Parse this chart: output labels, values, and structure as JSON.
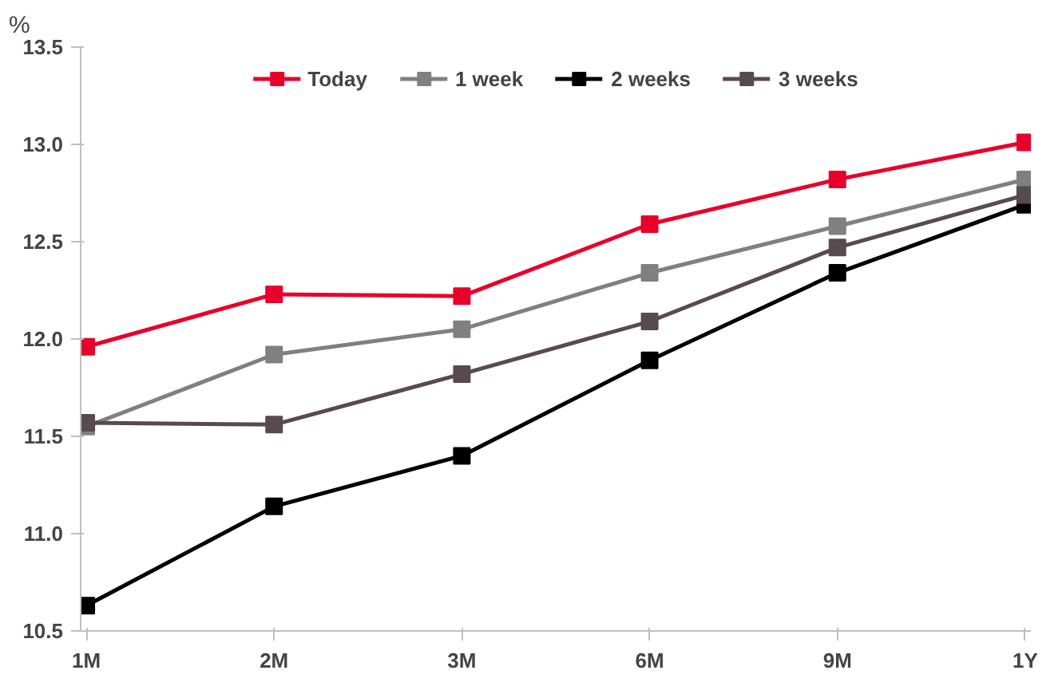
{
  "chart_data": {
    "type": "line",
    "ylabel": "%",
    "categories": [
      "1M",
      "2M",
      "3M",
      "6M",
      "9M",
      "1Y"
    ],
    "ylim": [
      10.5,
      13.5
    ],
    "yticks": [
      10.5,
      {
        "value": 11,
        "label": "11.0"
      },
      11.5,
      {
        "value": 12,
        "label": "12.0"
      },
      12.5,
      {
        "value": 13,
        "label": "13.0"
      },
      13.5
    ],
    "series": [
      {
        "name": "Today",
        "color": "#e8002a",
        "values": [
          11.96,
          12.23,
          12.22,
          12.59,
          12.82,
          13.01
        ]
      },
      {
        "name": "1 week",
        "color": "#808080",
        "values": [
          11.55,
          11.92,
          12.05,
          12.34,
          12.58,
          12.82
        ]
      },
      {
        "name": "2 weeks",
        "color": "#000000",
        "values": [
          10.63,
          11.14,
          11.4,
          11.89,
          12.34,
          12.69
        ]
      },
      {
        "name": "3 weeks",
        "color": "#584a4e",
        "values": [
          11.57,
          11.56,
          11.82,
          12.09,
          12.47,
          12.74
        ]
      }
    ],
    "marker": "square",
    "legend": "top",
    "grid": false
  }
}
